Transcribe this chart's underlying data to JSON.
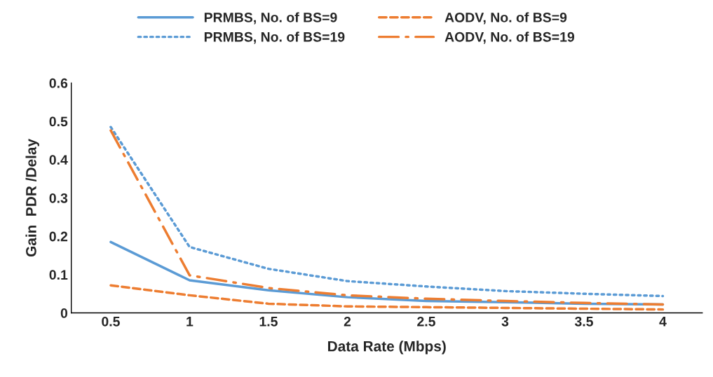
{
  "chart_data": {
    "type": "line",
    "xlabel": "Data Rate (Mbps)",
    "ylabel": "Gain  PDR /Delay",
    "categories": [
      "0.5",
      "1",
      "1.5",
      "2",
      "2.5",
      "3",
      "3.5",
      "4"
    ],
    "series": [
      {
        "name": "PRMBS, No. of BS=9",
        "color": "#5b9bd5",
        "line_style": "solid",
        "values": [
          0.185,
          0.085,
          0.059,
          0.041,
          0.031,
          0.028,
          0.024,
          0.022
        ]
      },
      {
        "name": "AODV, No. of BS=9",
        "color": "#ed7d31",
        "line_style": "dashed",
        "values": [
          0.072,
          0.046,
          0.024,
          0.017,
          0.015,
          0.013,
          0.011,
          0.009
        ]
      },
      {
        "name": "PRMBS, No. of BS=19",
        "color": "#5b9bd5",
        "line_style": "dotted",
        "values": [
          0.485,
          0.172,
          0.115,
          0.083,
          0.069,
          0.057,
          0.05,
          0.044
        ]
      },
      {
        "name": "AODV, No. of BS=19",
        "color": "#ed7d31",
        "line_style": "dashdot",
        "values": [
          0.476,
          0.098,
          0.065,
          0.046,
          0.037,
          0.031,
          0.026,
          0.022
        ]
      }
    ],
    "ylim": [
      0,
      0.6
    ],
    "yticks": [
      0,
      0.1,
      0.2,
      0.3,
      0.4,
      0.5,
      0.6
    ],
    "grid": false,
    "legend": "top",
    "marker": "none"
  }
}
